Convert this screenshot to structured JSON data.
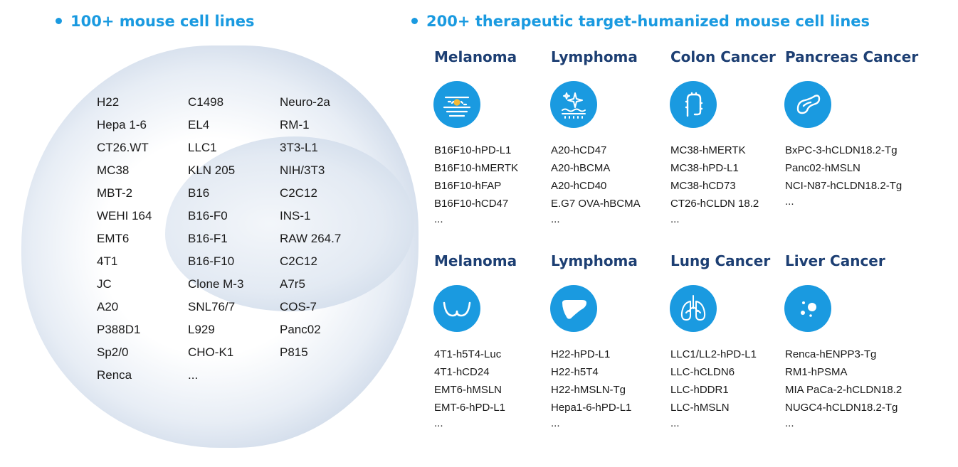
{
  "left_section": {
    "title": "100+ mouse cell lines",
    "columns": [
      [
        "H22",
        "Hepa 1-6",
        "CT26.WT",
        "MC38",
        "MBT-2",
        "WEHI 164",
        "EMT6",
        "4T1",
        "JC",
        "A20",
        "P388D1",
        "Sp2/0",
        "Renca"
      ],
      [
        "C1498",
        "EL4",
        "LLC1",
        "KLN 205",
        "B16",
        "B16-F0",
        "B16-F1",
        "B16-F10",
        "Clone M-3",
        "SNL76/7",
        "L929",
        "CHO-K1",
        "..."
      ],
      [
        "Neuro-2a",
        "RM-1",
        "3T3-L1",
        "NIH/3T3",
        "C2C12",
        "INS-1",
        "RAW 264.7",
        "C2C12",
        "A7r5",
        "COS-7",
        "Panc02",
        "P815"
      ]
    ]
  },
  "right_section": {
    "title": "200+ therapeutic target-humanized mouse cell lines",
    "cancers": [
      {
        "name": "Melanoma",
        "icon": "skin-layer-icon",
        "lines": [
          "B16F10-hPD-L1",
          "B16F10-hMERTK",
          "B16F10-hFAP",
          "B16F10-hCD47",
          "..."
        ]
      },
      {
        "name": "Lymphoma",
        "icon": "sparkle-tissue-icon",
        "lines": [
          "A20-hCD47",
          "A20-hBCMA",
          "A20-hCD40",
          "E.G7 OVA-hBCMA",
          "..."
        ]
      },
      {
        "name": "Colon Cancer",
        "icon": "colon-icon",
        "lines": [
          "MC38-hMERTK",
          "MC38-hPD-L1",
          "MC38-hCD73",
          "CT26-hCLDN 18.2",
          "..."
        ]
      },
      {
        "name": "Pancreas Cancer",
        "icon": "pancreas-icon",
        "lines": [
          "BxPC-3-hCLDN18.2-Tg",
          "Panc02-hMSLN",
          "NCI-N87-hCLDN18.2-Tg",
          "..."
        ]
      },
      {
        "name": "Melanoma",
        "icon": "breast-icon",
        "lines": [
          "4T1-h5T4-Luc",
          "4T1-hCD24",
          "EMT6-hMSLN",
          "EMT-6-hPD-L1",
          "..."
        ]
      },
      {
        "name": "Lymphoma",
        "icon": "liver-icon",
        "lines": [
          "H22-hPD-L1",
          "H22-h5T4",
          "H22-hMSLN-Tg",
          "Hepa1-6-hPD-L1",
          "..."
        ]
      },
      {
        "name": "Lung Cancer",
        "icon": "lungs-icon",
        "lines": [
          "LLC1/LL2-hPD-L1",
          "LLC-hCLDN6",
          "LLC-hDDR1",
          "LLC-hMSLN",
          "..."
        ]
      },
      {
        "name": "Liver Cancer",
        "icon": "cells-icon",
        "lines": [
          "Renca-hENPP3-Tg",
          "RM1-hPSMA",
          "MIA PaCa-2-hCLDN18.2",
          "NUGC4-hCLDN18.2-Tg",
          "..."
        ]
      }
    ]
  },
  "colors": {
    "accent": "#1a9ae0",
    "heading": "#1d3f73"
  }
}
